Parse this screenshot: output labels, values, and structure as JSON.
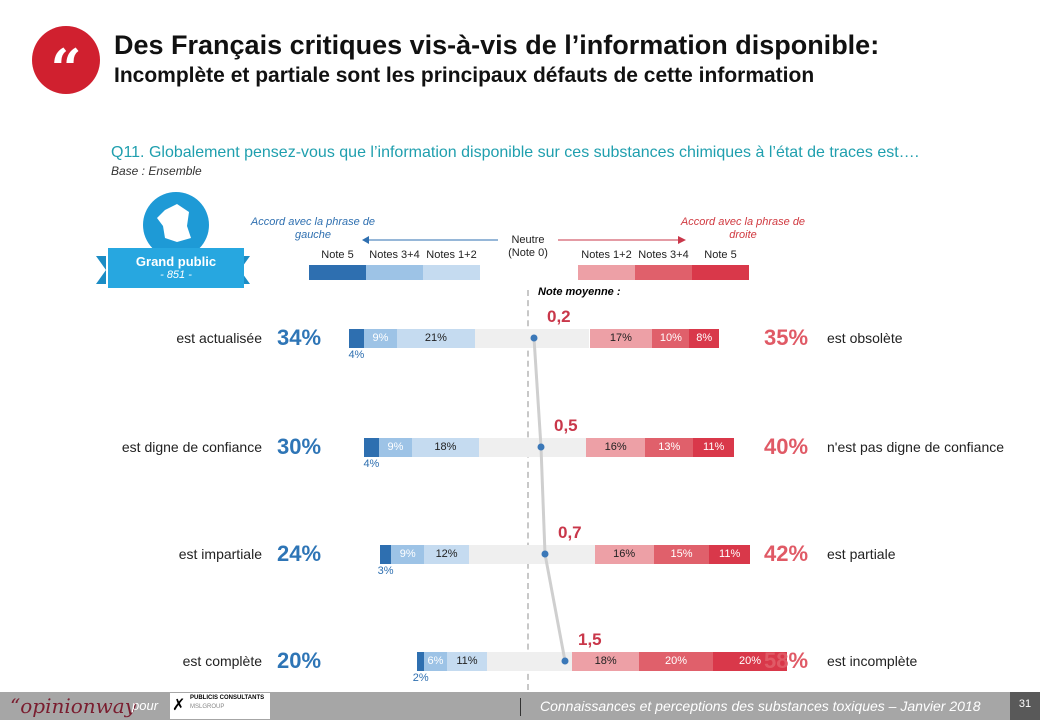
{
  "header": {
    "title": "Des Français critiques vis-à-vis de l’information disponible:",
    "subtitle": "Incomplète et partiale sont les principaux défauts de cette information",
    "quote_icon": "“"
  },
  "question": "Q11. Globalement pensez-vous que l’information disponible sur ces substances chimiques à l’état de traces est….",
  "base": "Base : Ensemble",
  "sample": {
    "label": "Grand public",
    "n": "- 851 -"
  },
  "legend": {
    "left_title": "Accord avec la phrase de gauche",
    "right_title": "Accord avec la phrase de droite",
    "neutral": "Neutre (Note 0)",
    "left": [
      "Note 5",
      "Notes 3+4",
      "Notes 1+2"
    ],
    "right": [
      "Notes 1+2",
      "Notes 3+4",
      "Note 5"
    ],
    "mean_title": "Note moyenne :"
  },
  "colors": {
    "left": [
      "#2e6fb0",
      "#9dc3e6",
      "#c5dbf0"
    ],
    "neutral": "#efefef",
    "right": [
      "#eda0a6",
      "#e0606b",
      "#d9384a"
    ],
    "blue_text": "#2e75b6",
    "red_text": "#e05a66"
  },
  "chart_data": {
    "type": "bar",
    "stacked": true,
    "categories": [
      "est actualisée / est obsolète",
      "est digne de confiance / n'est pas digne de confiance",
      "est impartiale / est partiale",
      "est complète / est incomplète"
    ],
    "rows": [
      {
        "left_label": "est actualisée",
        "left_total": "34%",
        "left": [
          "4%",
          "9%",
          "21%"
        ],
        "left_values": [
          4,
          9,
          21
        ],
        "right_values": [
          17,
          10,
          8
        ],
        "right": [
          "17%",
          "10%",
          "8%"
        ],
        "right_total": "35%",
        "right_label": "est obsolète",
        "mean": "0,2",
        "mean_value": 0.2
      },
      {
        "left_label": "est digne de confiance",
        "left_total": "30%",
        "left": [
          "4%",
          "9%",
          "18%"
        ],
        "left_values": [
          4,
          9,
          18
        ],
        "right_values": [
          16,
          13,
          11
        ],
        "right": [
          "16%",
          "13%",
          "11%"
        ],
        "right_total": "40%",
        "right_label": "n'est pas digne de confiance",
        "mean": "0,5",
        "mean_value": 0.5
      },
      {
        "left_label": "est impartiale",
        "left_total": "24%",
        "left": [
          "3%",
          "9%",
          "12%"
        ],
        "left_values": [
          3,
          9,
          12
        ],
        "right_values": [
          16,
          15,
          11
        ],
        "right": [
          "16%",
          "15%",
          "11%"
        ],
        "right_total": "42%",
        "right_label": "est partiale",
        "mean": "0,7",
        "mean_value": 0.7
      },
      {
        "left_label": "est complète",
        "left_total": "20%",
        "left": [
          "2%",
          "6%",
          "11%"
        ],
        "left_values": [
          2,
          6,
          11
        ],
        "right_values": [
          18,
          20,
          20
        ],
        "right": [
          "18%",
          "20%",
          "20%"
        ],
        "right_total": "58%",
        "right_label": "est incomplète",
        "mean": "1,5",
        "mean_value": 1.5
      }
    ]
  },
  "footer": {
    "brand": "“opinionway",
    "pour": "pour",
    "client": "PUBLICIS CONSULTANTS",
    "client_sub": "MSLGROUP",
    "study": "Connaissances et perceptions des substances toxiques – Janvier 2018",
    "page": "31"
  }
}
